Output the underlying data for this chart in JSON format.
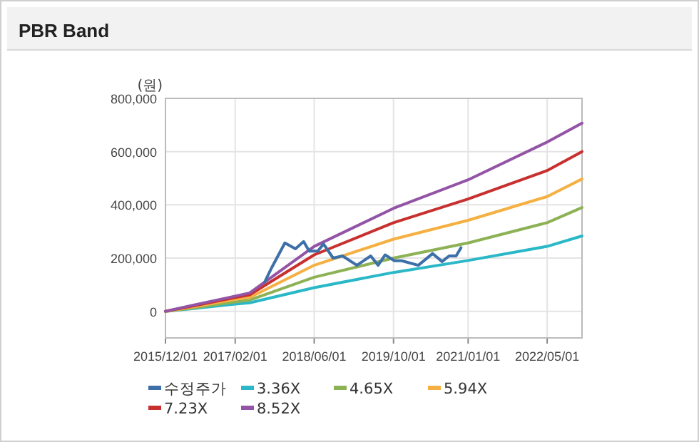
{
  "chart_data": {
    "type": "line",
    "title": "PBR Band",
    "ylabel": "(원)",
    "xlim": [
      "2015-12-01",
      "2022-12-01"
    ],
    "ylim": [
      -100000,
      800000
    ],
    "xticks": [
      {
        "value": "2015-12-01",
        "label": "2015/12/01"
      },
      {
        "value": "2017-02-01",
        "label": "2017/02/01"
      },
      {
        "value": "2018-06-01",
        "label": "2018/06/01"
      },
      {
        "value": "2019-10-01",
        "label": "2019/10/01"
      },
      {
        "value": "2021-01-01",
        "label": "2021/01/01"
      },
      {
        "value": "2022-05-01",
        "label": "2022/05/01"
      }
    ],
    "yticks": [
      0,
      {
        "value": 200000,
        "label": "200,000"
      },
      {
        "value": 400000,
        "label": "400,000"
      },
      {
        "value": 600000,
        "label": "600,000"
      },
      {
        "value": 800000,
        "label": "800,000"
      }
    ],
    "grid": true,
    "legend": "bottom",
    "marker": "none",
    "line_style": "solid",
    "series": [
      {
        "name": "수정주가",
        "color": "#3d6fa8",
        "x": [
          "2017-08-01",
          "2017-09-13",
          "2017-12-03",
          "2018-02-06",
          "2018-03-28",
          "2018-05-01",
          "2018-06-23",
          "2018-07-28",
          "2018-09-25",
          "2018-11-22",
          "2019-02-18",
          "2019-05-14",
          "2019-06-28",
          "2019-08-10",
          "2019-10-06",
          "2019-11-20",
          "2020-03-01",
          "2020-05-28",
          "2020-07-25",
          "2020-09-06",
          "2020-10-19",
          "2020-11-18"
        ],
        "values": [
          110000,
          164000,
          257000,
          235000,
          262000,
          226000,
          226000,
          253000,
          200000,
          208000,
          173000,
          208000,
          173000,
          212000,
          190000,
          190000,
          173000,
          217000,
          187000,
          208000,
          208000,
          239000
        ]
      },
      {
        "name": "3.36X",
        "color": "#2ab8c8",
        "x": [
          "2015-12-01",
          "2016-06-01",
          "2017-02-01",
          "2017-05-01",
          "2018-06-01",
          "2019-10-01",
          "2021-01-01",
          "2022-05-01",
          "2022-12-01"
        ],
        "values": [
          0,
          11000,
          27000,
          32000,
          89000,
          146000,
          191000,
          244000,
          283000
        ]
      },
      {
        "name": "4.65X",
        "color": "#8db255",
        "x": [
          "2015-12-01",
          "2016-06-01",
          "2017-02-01",
          "2017-05-01",
          "2018-06-01",
          "2019-10-01",
          "2021-01-01",
          "2022-05-01",
          "2022-12-01"
        ],
        "values": [
          0,
          14000,
          35000,
          42000,
          128000,
          200000,
          257000,
          333000,
          390000
        ]
      },
      {
        "name": "5.94X",
        "color": "#f5b041",
        "x": [
          "2015-12-01",
          "2016-06-01",
          "2017-02-01",
          "2017-05-01",
          "2018-06-01",
          "2019-10-01",
          "2021-01-01",
          "2022-05-01",
          "2022-12-01"
        ],
        "values": [
          0,
          18000,
          45000,
          52000,
          173000,
          271000,
          342000,
          431000,
          497000
        ]
      },
      {
        "name": "7.23X",
        "color": "#c8302f",
        "x": [
          "2015-12-01",
          "2016-06-01",
          "2017-02-01",
          "2017-05-01",
          "2018-06-01",
          "2019-10-01",
          "2021-01-01",
          "2022-05-01",
          "2022-12-01"
        ],
        "values": [
          0,
          22000,
          52000,
          62000,
          212000,
          333000,
          422000,
          529000,
          600000
        ]
      },
      {
        "name": "8.52X",
        "color": "#9354a6",
        "x": [
          "2015-12-01",
          "2016-06-01",
          "2017-02-01",
          "2017-05-01",
          "2018-06-01",
          "2019-10-01",
          "2021-01-01",
          "2022-05-01",
          "2022-12-01"
        ],
        "values": [
          0,
          25000,
          57000,
          69000,
          244000,
          387000,
          494000,
          636000,
          707000
        ]
      }
    ]
  }
}
